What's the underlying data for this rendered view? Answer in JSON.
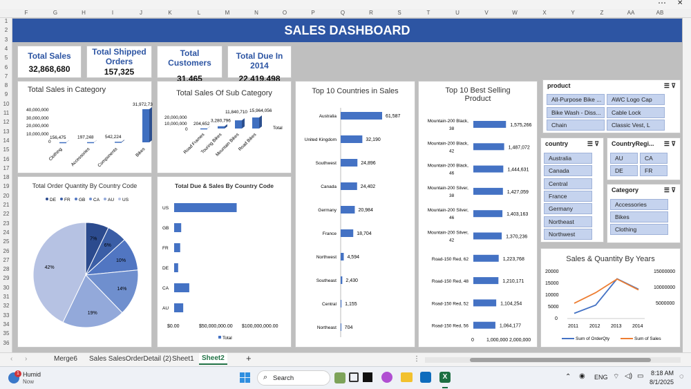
{
  "window": {
    "menu_icon": "more-icon",
    "close_icon": "close-icon"
  },
  "columns": [
    "F",
    "G",
    "H",
    "I",
    "J",
    "K",
    "L",
    "M",
    "N",
    "O",
    "P",
    "Q",
    "R",
    "S",
    "T",
    "U",
    "V",
    "W",
    "X",
    "Y",
    "Z",
    "AA",
    "AB"
  ],
  "rows": [
    "1",
    "2",
    "3",
    "4",
    "5",
    "6",
    "7",
    "8",
    "9",
    "10",
    "11",
    "12",
    "13",
    "14",
    "15",
    "16",
    "17",
    "18",
    "19",
    "20",
    "21",
    "22",
    "23",
    "24",
    "25",
    "26",
    "27",
    "28",
    "29",
    "30",
    "31",
    "32",
    "33",
    "34",
    "35",
    "36"
  ],
  "dashboard": {
    "title": "SALES DASHBOARD"
  },
  "kpis": [
    {
      "label": "Total Sales",
      "value": "32,868,680"
    },
    {
      "label": "Total Shipped Orders",
      "value": "157,325"
    },
    {
      "label": "Total Customers",
      "value": "31,465"
    },
    {
      "label": "Total Due In 2014",
      "value": "22,419,498"
    }
  ],
  "charts": {
    "sales_category": {
      "title": "Total Sales in Category",
      "yticks": [
        "40,000,000",
        "30,000,000",
        "20,000,000",
        "10,000,000",
        "0"
      ]
    },
    "sales_subcategory": {
      "title": "Total Sales Of Sub Category",
      "yticks": [
        "20,000,000",
        "10,000,000",
        "0"
      ],
      "legend": "Total"
    },
    "top_countries": {
      "title": "Top 10 Countries in Sales"
    },
    "best_selling": {
      "title": "Top 10 Best Selling Product",
      "xticks": [
        "0",
        "1,000,000",
        "2,000,000"
      ]
    },
    "order_qty": {
      "title": "Total Order Quantity By Country Code"
    },
    "due_sales": {
      "title": "Total Due & Sales By Country Code",
      "xticks": [
        "$0.00",
        "$50,000,000.00",
        "$100,000,000.00"
      ],
      "legend": "Total"
    },
    "years": {
      "title": "Sales & Quantity By Years",
      "yleft": [
        "20000",
        "15000",
        "10000",
        "5000",
        "0"
      ],
      "yright": [
        "15000000",
        "10000000",
        "5000000"
      ],
      "legend": [
        "Sum of OrderQty",
        "Sum of Sales"
      ]
    }
  },
  "chart_data": [
    {
      "type": "bar",
      "title": "Total Sales in Category",
      "categories": [
        "Clothing",
        "Accessories",
        "Components",
        "Bikes"
      ],
      "values": [
        156475,
        197248,
        542224,
        31972733
      ],
      "labels": [
        "156,475",
        "197,248",
        "542,224",
        "31,972,733"
      ],
      "ylim": [
        0,
        40000000
      ]
    },
    {
      "type": "bar",
      "title": "Total Sales Of Sub Category",
      "categories": [
        "Road Frames",
        "Touring Bikes",
        "Mountain Bikes",
        "Road Bikes"
      ],
      "values": [
        204652,
        3280796,
        11840710,
        15964056
      ],
      "labels": [
        "204,652",
        "3,280,796",
        "11,840,710",
        "15,964,056"
      ],
      "ylim": [
        0,
        20000000
      ]
    },
    {
      "type": "bar",
      "title": "Top 10 Countries in Sales",
      "categories": [
        "Australia",
        "United Kingdom",
        "Southwest",
        "Canada",
        "Germany",
        "France",
        "Northwest",
        "Southeast",
        "Central",
        "Northeast"
      ],
      "values": [
        61587,
        32190,
        24896,
        24402,
        20984,
        18704,
        4594,
        2430,
        1155,
        704
      ],
      "labels": [
        "61,587",
        "32,190",
        "24,896",
        "24,402",
        "20,984",
        "18,704",
        "4,594",
        "2,430",
        "1,155",
        "704"
      ]
    },
    {
      "type": "bar",
      "title": "Top 10 Best Selling Product",
      "categories": [
        "Mountain-200 Black, 38",
        "Mountain-200 Black, 42",
        "Mountain-200 Black, 46",
        "Mountain-200 Silver, 38",
        "Mountain-200 Silver, 46",
        "Mountain-200 Silver, 42",
        "Road-150 Red, 62",
        "Road-150 Red, 48",
        "Road-150 Red, 52",
        "Road-150 Red, 56"
      ],
      "values": [
        1575266,
        1487072,
        1444631,
        1427059,
        1403163,
        1370236,
        1223768,
        1210171,
        1104254,
        1064177
      ],
      "labels": [
        "1,575,266",
        "1,487,072",
        "1,444,631",
        "1,427,059",
        "1,403,163",
        "1,370,236",
        "1,223,768",
        "1,210,171",
        "1,104,254",
        "1,064,177"
      ],
      "xlim": [
        0,
        2000000
      ]
    },
    {
      "type": "pie",
      "title": "Total Order Quantity By Country Code",
      "categories": [
        "DE",
        "FR",
        "GB",
        "CA",
        "AU",
        "US"
      ],
      "values": [
        7,
        6,
        10,
        14,
        19,
        42
      ],
      "labels": [
        "7%",
        "6%",
        "10%",
        "14%",
        "19%",
        "42%"
      ],
      "colors": [
        "#2c4b8e",
        "#3b5ea6",
        "#5176c2",
        "#6f8fce",
        "#93a9da",
        "#b6c2e3"
      ]
    },
    {
      "type": "bar",
      "title": "Total Due & Sales By Country Code",
      "categories": [
        "US",
        "GB",
        "FR",
        "DE",
        "CA",
        "AU"
      ],
      "values": [
        62000000,
        7000000,
        6000000,
        4000000,
        15000000,
        9000000
      ],
      "xlim": [
        0,
        100000000
      ],
      "legend": "Total"
    },
    {
      "type": "line",
      "title": "Sales & Quantity By Years",
      "x": [
        "2011",
        "2012",
        "2013",
        "2014"
      ],
      "series": [
        {
          "name": "Sum of OrderQty",
          "values": [
            2200,
            5700,
            16900,
            12500
          ],
          "color": "#4472c4",
          "axis": "left"
        },
        {
          "name": "Sum of Sales",
          "values": [
            6500000,
            11000000,
            16800000,
            12200000
          ],
          "color": "#ed7d31",
          "axis": "right"
        }
      ],
      "ylim_left": [
        0,
        20000
      ],
      "ylim_right": [
        0,
        20000000
      ]
    }
  ],
  "slicers": {
    "product": {
      "title": "product",
      "items": [
        "All-Purpose Bike ...",
        "AWC Logo Cap",
        "Bike Wash - Diss...",
        "Cable Lock",
        "Chain",
        "Classic Vest, L"
      ]
    },
    "country": {
      "title": "country",
      "items": [
        "Australia",
        "Canada",
        "Central",
        "France",
        "Germany",
        "Northeast",
        "Northwest"
      ]
    },
    "region": {
      "title": "CountryRegi...",
      "items": [
        "AU",
        "CA",
        "DE",
        "FR"
      ]
    },
    "category": {
      "title": "Category",
      "items": [
        "Accessories",
        "Bikes",
        "Clothing"
      ]
    }
  },
  "tabs": [
    "Merge6",
    "Sales SalesOrderDetail (2)",
    "Sheet1",
    "Sheet2"
  ],
  "active_tab": "Sheet2",
  "taskbar": {
    "weather_title": "Humid",
    "weather_sub": "Now",
    "badge": "1",
    "search": "Search",
    "lang": "ENG",
    "time": "8:18 AM",
    "date": "8/1/2025"
  }
}
